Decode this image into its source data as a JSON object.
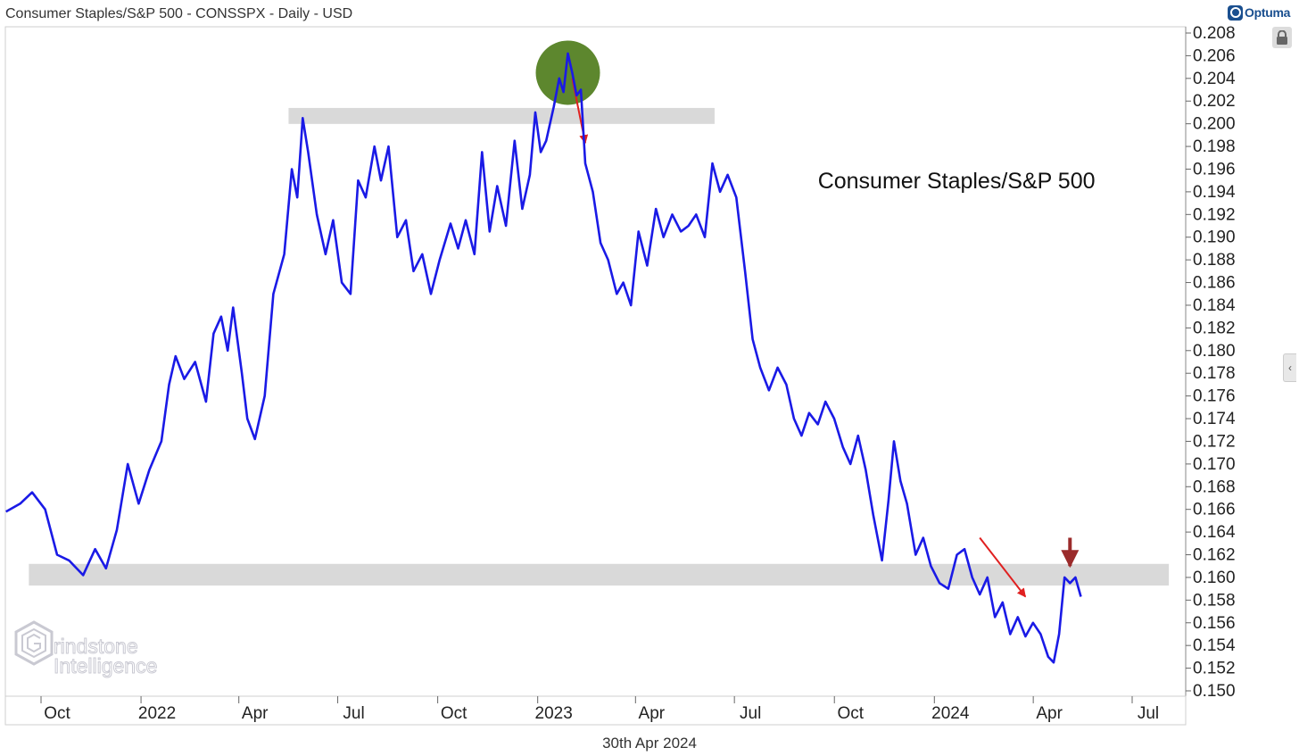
{
  "header": {
    "title": "Consumer Staples/S&P 500 - CONSSPX - Daily - USD",
    "brand": "Optuma"
  },
  "footer": {
    "date": "30th Apr 2024"
  },
  "watermark": {
    "line1": "rindstone",
    "line2": "Intelligence"
  },
  "colors": {
    "series": "#1a1ae6",
    "band": "#d9d9d9",
    "circle": "#4f7d1c",
    "arrow_red": "#e02020",
    "arrow_dark": "#9b2b2b"
  },
  "chart_data": {
    "type": "line",
    "title": "Consumer Staples/S&P 500",
    "xlabel": "",
    "ylabel": "",
    "ylim": [
      0.1495,
      0.2084
    ],
    "y_ticks": [
      "0.208",
      "0.206",
      "0.204",
      "0.202",
      "0.200",
      "0.198",
      "0.196",
      "0.194",
      "0.192",
      "0.190",
      "0.188",
      "0.186",
      "0.184",
      "0.182",
      "0.180",
      "0.178",
      "0.176",
      "0.174",
      "0.172",
      "0.170",
      "0.168",
      "0.166",
      "0.164",
      "0.162",
      "0.160",
      "0.158",
      "0.156",
      "0.154",
      "0.152",
      "0.150"
    ],
    "x_ticks": [
      {
        "label": "Oct",
        "date": "2021-10-01"
      },
      {
        "label": "2022",
        "date": "2022-01-01"
      },
      {
        "label": "Apr",
        "date": "2022-04-01"
      },
      {
        "label": "Jul",
        "date": "2022-07-01"
      },
      {
        "label": "Oct",
        "date": "2022-10-01"
      },
      {
        "label": "2023",
        "date": "2023-01-01"
      },
      {
        "label": "Apr",
        "date": "2023-04-01"
      },
      {
        "label": "Jul",
        "date": "2023-07-01"
      },
      {
        "label": "Oct",
        "date": "2023-10-01"
      },
      {
        "label": "2024",
        "date": "2024-01-01"
      },
      {
        "label": "Apr",
        "date": "2024-04-01"
      },
      {
        "label": "Jul",
        "date": "2024-07-01"
      }
    ],
    "series": [
      {
        "name": "Consumer Staples/S&P 500",
        "points": [
          [
            "2021-08-15",
            0.1658
          ],
          [
            "2021-08-28",
            0.1665
          ],
          [
            "2021-09-08",
            0.1675
          ],
          [
            "2021-09-20",
            0.166
          ],
          [
            "2021-10-01",
            0.162
          ],
          [
            "2021-10-12",
            0.1615
          ],
          [
            "2021-10-25",
            0.1602
          ],
          [
            "2021-11-05",
            0.1625
          ],
          [
            "2021-11-15",
            0.1608
          ],
          [
            "2021-11-25",
            0.1642
          ],
          [
            "2021-12-05",
            0.17
          ],
          [
            "2021-12-15",
            0.1665
          ],
          [
            "2021-12-25",
            0.1695
          ],
          [
            "2022-01-05",
            0.172
          ],
          [
            "2022-01-12",
            0.177
          ],
          [
            "2022-01-18",
            0.1795
          ],
          [
            "2022-01-26",
            0.1775
          ],
          [
            "2022-02-05",
            0.179
          ],
          [
            "2022-02-15",
            0.1755
          ],
          [
            "2022-02-22",
            0.1815
          ],
          [
            "2022-03-01",
            0.183
          ],
          [
            "2022-03-07",
            0.18
          ],
          [
            "2022-03-12",
            0.1838
          ],
          [
            "2022-03-20",
            0.178
          ],
          [
            "2022-03-25",
            0.174
          ],
          [
            "2022-04-01",
            0.1722
          ],
          [
            "2022-04-10",
            0.176
          ],
          [
            "2022-04-18",
            0.185
          ],
          [
            "2022-04-28",
            0.1885
          ],
          [
            "2022-05-05",
            0.196
          ],
          [
            "2022-05-10",
            0.1935
          ],
          [
            "2022-05-15",
            0.2005
          ],
          [
            "2022-05-20",
            0.1975
          ],
          [
            "2022-05-28",
            0.192
          ],
          [
            "2022-06-05",
            0.1885
          ],
          [
            "2022-06-12",
            0.1915
          ],
          [
            "2022-06-20",
            0.186
          ],
          [
            "2022-06-28",
            0.185
          ],
          [
            "2022-07-05",
            0.195
          ],
          [
            "2022-07-12",
            0.1935
          ],
          [
            "2022-07-20",
            0.198
          ],
          [
            "2022-07-26",
            0.195
          ],
          [
            "2022-08-02",
            0.198
          ],
          [
            "2022-08-10",
            0.19
          ],
          [
            "2022-08-18",
            0.1915
          ],
          [
            "2022-08-25",
            0.187
          ],
          [
            "2022-09-02",
            0.1885
          ],
          [
            "2022-09-10",
            0.185
          ],
          [
            "2022-09-18",
            0.188
          ],
          [
            "2022-09-28",
            0.1912
          ],
          [
            "2022-10-05",
            0.189
          ],
          [
            "2022-10-12",
            0.1915
          ],
          [
            "2022-10-20",
            0.1885
          ],
          [
            "2022-10-27",
            0.1975
          ],
          [
            "2022-11-03",
            0.1905
          ],
          [
            "2022-11-10",
            0.1945
          ],
          [
            "2022-11-18",
            0.191
          ],
          [
            "2022-11-26",
            0.1985
          ],
          [
            "2022-12-03",
            0.1925
          ],
          [
            "2022-12-10",
            0.1955
          ],
          [
            "2022-12-15",
            0.201
          ],
          [
            "2022-12-20",
            0.1975
          ],
          [
            "2022-12-25",
            0.1985
          ],
          [
            "2023-01-01",
            0.2015
          ],
          [
            "2023-01-06",
            0.204
          ],
          [
            "2023-01-10",
            0.2028
          ],
          [
            "2023-01-14",
            0.2062
          ],
          [
            "2023-01-18",
            0.2045
          ],
          [
            "2023-01-22",
            0.2025
          ],
          [
            "2023-01-26",
            0.203
          ],
          [
            "2023-01-30",
            0.1965
          ],
          [
            "2023-02-06",
            0.194
          ],
          [
            "2023-02-13",
            0.1895
          ],
          [
            "2023-02-20",
            0.188
          ],
          [
            "2023-02-28",
            0.185
          ],
          [
            "2023-03-06",
            0.186
          ],
          [
            "2023-03-13",
            0.184
          ],
          [
            "2023-03-20",
            0.1905
          ],
          [
            "2023-03-28",
            0.1875
          ],
          [
            "2023-04-05",
            0.1925
          ],
          [
            "2023-04-12",
            0.19
          ],
          [
            "2023-04-20",
            0.192
          ],
          [
            "2023-04-28",
            0.1905
          ],
          [
            "2023-05-05",
            0.191
          ],
          [
            "2023-05-12",
            0.192
          ],
          [
            "2023-05-20",
            0.19
          ],
          [
            "2023-05-27",
            0.1965
          ],
          [
            "2023-06-03",
            0.194
          ],
          [
            "2023-06-10",
            0.1955
          ],
          [
            "2023-06-18",
            0.1935
          ],
          [
            "2023-06-26",
            0.187
          ],
          [
            "2023-07-03",
            0.181
          ],
          [
            "2023-07-10",
            0.1785
          ],
          [
            "2023-07-18",
            0.1765
          ],
          [
            "2023-07-26",
            0.1785
          ],
          [
            "2023-08-03",
            0.177
          ],
          [
            "2023-08-10",
            0.174
          ],
          [
            "2023-08-17",
            0.1725
          ],
          [
            "2023-08-24",
            0.1745
          ],
          [
            "2023-09-01",
            0.1735
          ],
          [
            "2023-09-08",
            0.1755
          ],
          [
            "2023-09-16",
            0.174
          ],
          [
            "2023-09-24",
            0.1715
          ],
          [
            "2023-10-01",
            0.17
          ],
          [
            "2023-10-08",
            0.1725
          ],
          [
            "2023-10-15",
            0.1695
          ],
          [
            "2023-10-22",
            0.1655
          ],
          [
            "2023-10-30",
            0.1615
          ],
          [
            "2023-11-05",
            0.1668
          ],
          [
            "2023-11-10",
            0.172
          ],
          [
            "2023-11-16",
            0.1685
          ],
          [
            "2023-11-22",
            0.1665
          ],
          [
            "2023-11-30",
            0.162
          ],
          [
            "2023-12-07",
            0.1635
          ],
          [
            "2023-12-14",
            0.161
          ],
          [
            "2023-12-22",
            0.1595
          ],
          [
            "2023-12-30",
            0.159
          ],
          [
            "2024-01-07",
            0.162
          ],
          [
            "2024-01-14",
            0.1625
          ],
          [
            "2024-01-21",
            0.16
          ],
          [
            "2024-01-28",
            0.1585
          ],
          [
            "2024-02-04",
            0.16
          ],
          [
            "2024-02-11",
            0.1565
          ],
          [
            "2024-02-18",
            0.1578
          ],
          [
            "2024-02-25",
            0.155
          ],
          [
            "2024-03-03",
            0.1565
          ],
          [
            "2024-03-10",
            0.1548
          ],
          [
            "2024-03-17",
            0.156
          ],
          [
            "2024-03-24",
            0.155
          ],
          [
            "2024-03-31",
            0.153
          ],
          [
            "2024-04-05",
            0.1525
          ],
          [
            "2024-04-10",
            0.155
          ],
          [
            "2024-04-15",
            0.16
          ],
          [
            "2024-04-20",
            0.1595
          ],
          [
            "2024-04-25",
            0.16
          ],
          [
            "2024-04-30",
            0.1583
          ]
        ]
      }
    ],
    "bands": [
      {
        "name": "resistance-band",
        "y_min": 0.2003,
        "y_max": 0.201,
        "x_start": "2022-05-02",
        "x_end": "2023-05-29"
      },
      {
        "name": "support-band",
        "y_min": 0.1596,
        "y_max": 0.1608,
        "x_start": "2021-09-05",
        "x_end": "2024-07-20"
      }
    ],
    "annotations": [
      {
        "type": "text",
        "text": "Consumer Staples/S&P 500",
        "x": "2023-09-01",
        "y": 0.194
      },
      {
        "type": "circle",
        "x": "2023-01-14",
        "y": 0.2045,
        "color": "#4f7d1c"
      },
      {
        "type": "arrow",
        "x_from": "2023-01-18",
        "y_from": 0.204,
        "x_to": "2023-01-30",
        "y_to": 0.1983,
        "color": "#e02020"
      },
      {
        "type": "arrow",
        "x_from": "2024-01-28",
        "y_from": 0.1635,
        "x_to": "2024-03-10",
        "y_to": 0.1583,
        "color": "#e02020"
      },
      {
        "type": "arrow",
        "x_from": "2024-04-20",
        "y_from": 0.1635,
        "x_to": "2024-04-20",
        "y_to": 0.161,
        "color": "#9b2b2b"
      }
    ]
  }
}
